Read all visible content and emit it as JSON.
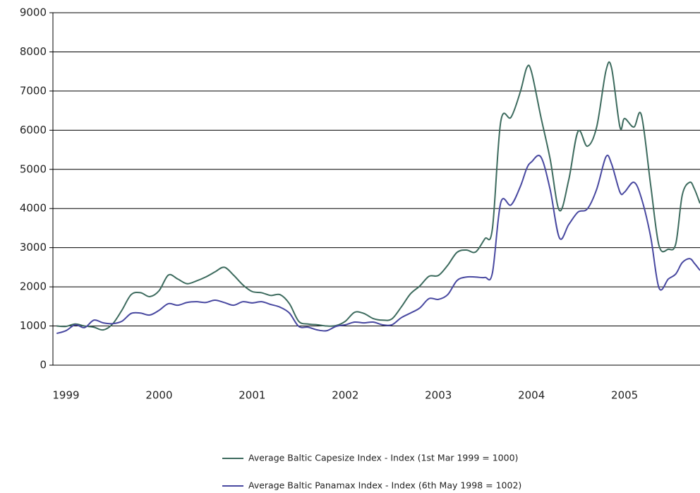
{
  "chart_data": {
    "type": "line",
    "x": [
      1998.9,
      1999.0,
      1999.1,
      1999.2,
      1999.3,
      1999.4,
      1999.5,
      1999.6,
      1999.7,
      1999.8,
      1999.9,
      2000.0,
      2000.1,
      2000.2,
      2000.3,
      2000.4,
      2000.5,
      2000.6,
      2000.7,
      2000.8,
      2000.9,
      2001.0,
      2001.1,
      2001.2,
      2001.3,
      2001.4,
      2001.5,
      2001.6,
      2001.7,
      2001.8,
      2001.9,
      2002.0,
      2002.1,
      2002.2,
      2002.3,
      2002.4,
      2002.5,
      2002.6,
      2002.7,
      2002.8,
      2002.9,
      2003.0,
      2003.1,
      2003.2,
      2003.3,
      2003.4,
      2003.5,
      2003.58,
      2003.67,
      2003.78,
      2003.88,
      2003.95,
      2004.0,
      2004.1,
      2004.2,
      2004.3,
      2004.4,
      2004.5,
      2004.6,
      2004.7,
      2004.8,
      2004.86,
      2004.95,
      2005.0,
      2005.1,
      2005.18,
      2005.28,
      2005.37,
      2005.47,
      2005.55,
      2005.62,
      2005.7,
      2005.75,
      2005.81
    ],
    "series": [
      {
        "name": "Average Baltic Capesize Index - Index (1st Mar 1999 = 1000)",
        "color": "#3d6b5e",
        "values": [
          1000,
          990,
          1050,
          1000,
          970,
          900,
          1050,
          1400,
          1800,
          1850,
          1750,
          1900,
          2300,
          2200,
          2080,
          2150,
          2250,
          2380,
          2500,
          2300,
          2050,
          1880,
          1850,
          1780,
          1800,
          1570,
          1120,
          1050,
          1030,
          1000,
          1010,
          1120,
          1350,
          1320,
          1190,
          1150,
          1180,
          1480,
          1820,
          2020,
          2270,
          2290,
          2550,
          2880,
          2940,
          2890,
          3230,
          3480,
          6220,
          6330,
          6980,
          7600,
          7490,
          6350,
          5270,
          3950,
          4730,
          5970,
          5590,
          6080,
          7520,
          7590,
          6080,
          6300,
          6080,
          6390,
          4600,
          3050,
          2960,
          3100,
          4350,
          4670,
          4500,
          4130
        ]
      },
      {
        "name": "Average Baltic Panamax Index - Index (6th May 1998 = 1002)",
        "color": "#4848a0",
        "values": [
          810,
          880,
          1030,
          960,
          1150,
          1080,
          1060,
          1120,
          1320,
          1330,
          1280,
          1400,
          1570,
          1530,
          1600,
          1620,
          1600,
          1660,
          1600,
          1530,
          1620,
          1590,
          1620,
          1550,
          1480,
          1330,
          990,
          970,
          900,
          880,
          990,
          1030,
          1100,
          1080,
          1100,
          1030,
          1030,
          1210,
          1330,
          1460,
          1700,
          1680,
          1800,
          2160,
          2250,
          2250,
          2240,
          2350,
          4150,
          4090,
          4560,
          5030,
          5190,
          5320,
          4490,
          3250,
          3590,
          3910,
          3990,
          4490,
          5320,
          5140,
          4420,
          4420,
          4670,
          4270,
          3280,
          1970,
          2200,
          2330,
          2620,
          2720,
          2600,
          2420
        ]
      }
    ],
    "xlim": [
      1998.86,
      2005.81
    ],
    "xticks": [
      1999,
      2000,
      2001,
      2002,
      2003,
      2004,
      2005
    ],
    "ylim": [
      0,
      9000
    ],
    "yticks": [
      0,
      1000,
      2000,
      3000,
      4000,
      5000,
      6000,
      7000,
      8000,
      9000
    ],
    "grid": true,
    "legend": "bottom"
  }
}
